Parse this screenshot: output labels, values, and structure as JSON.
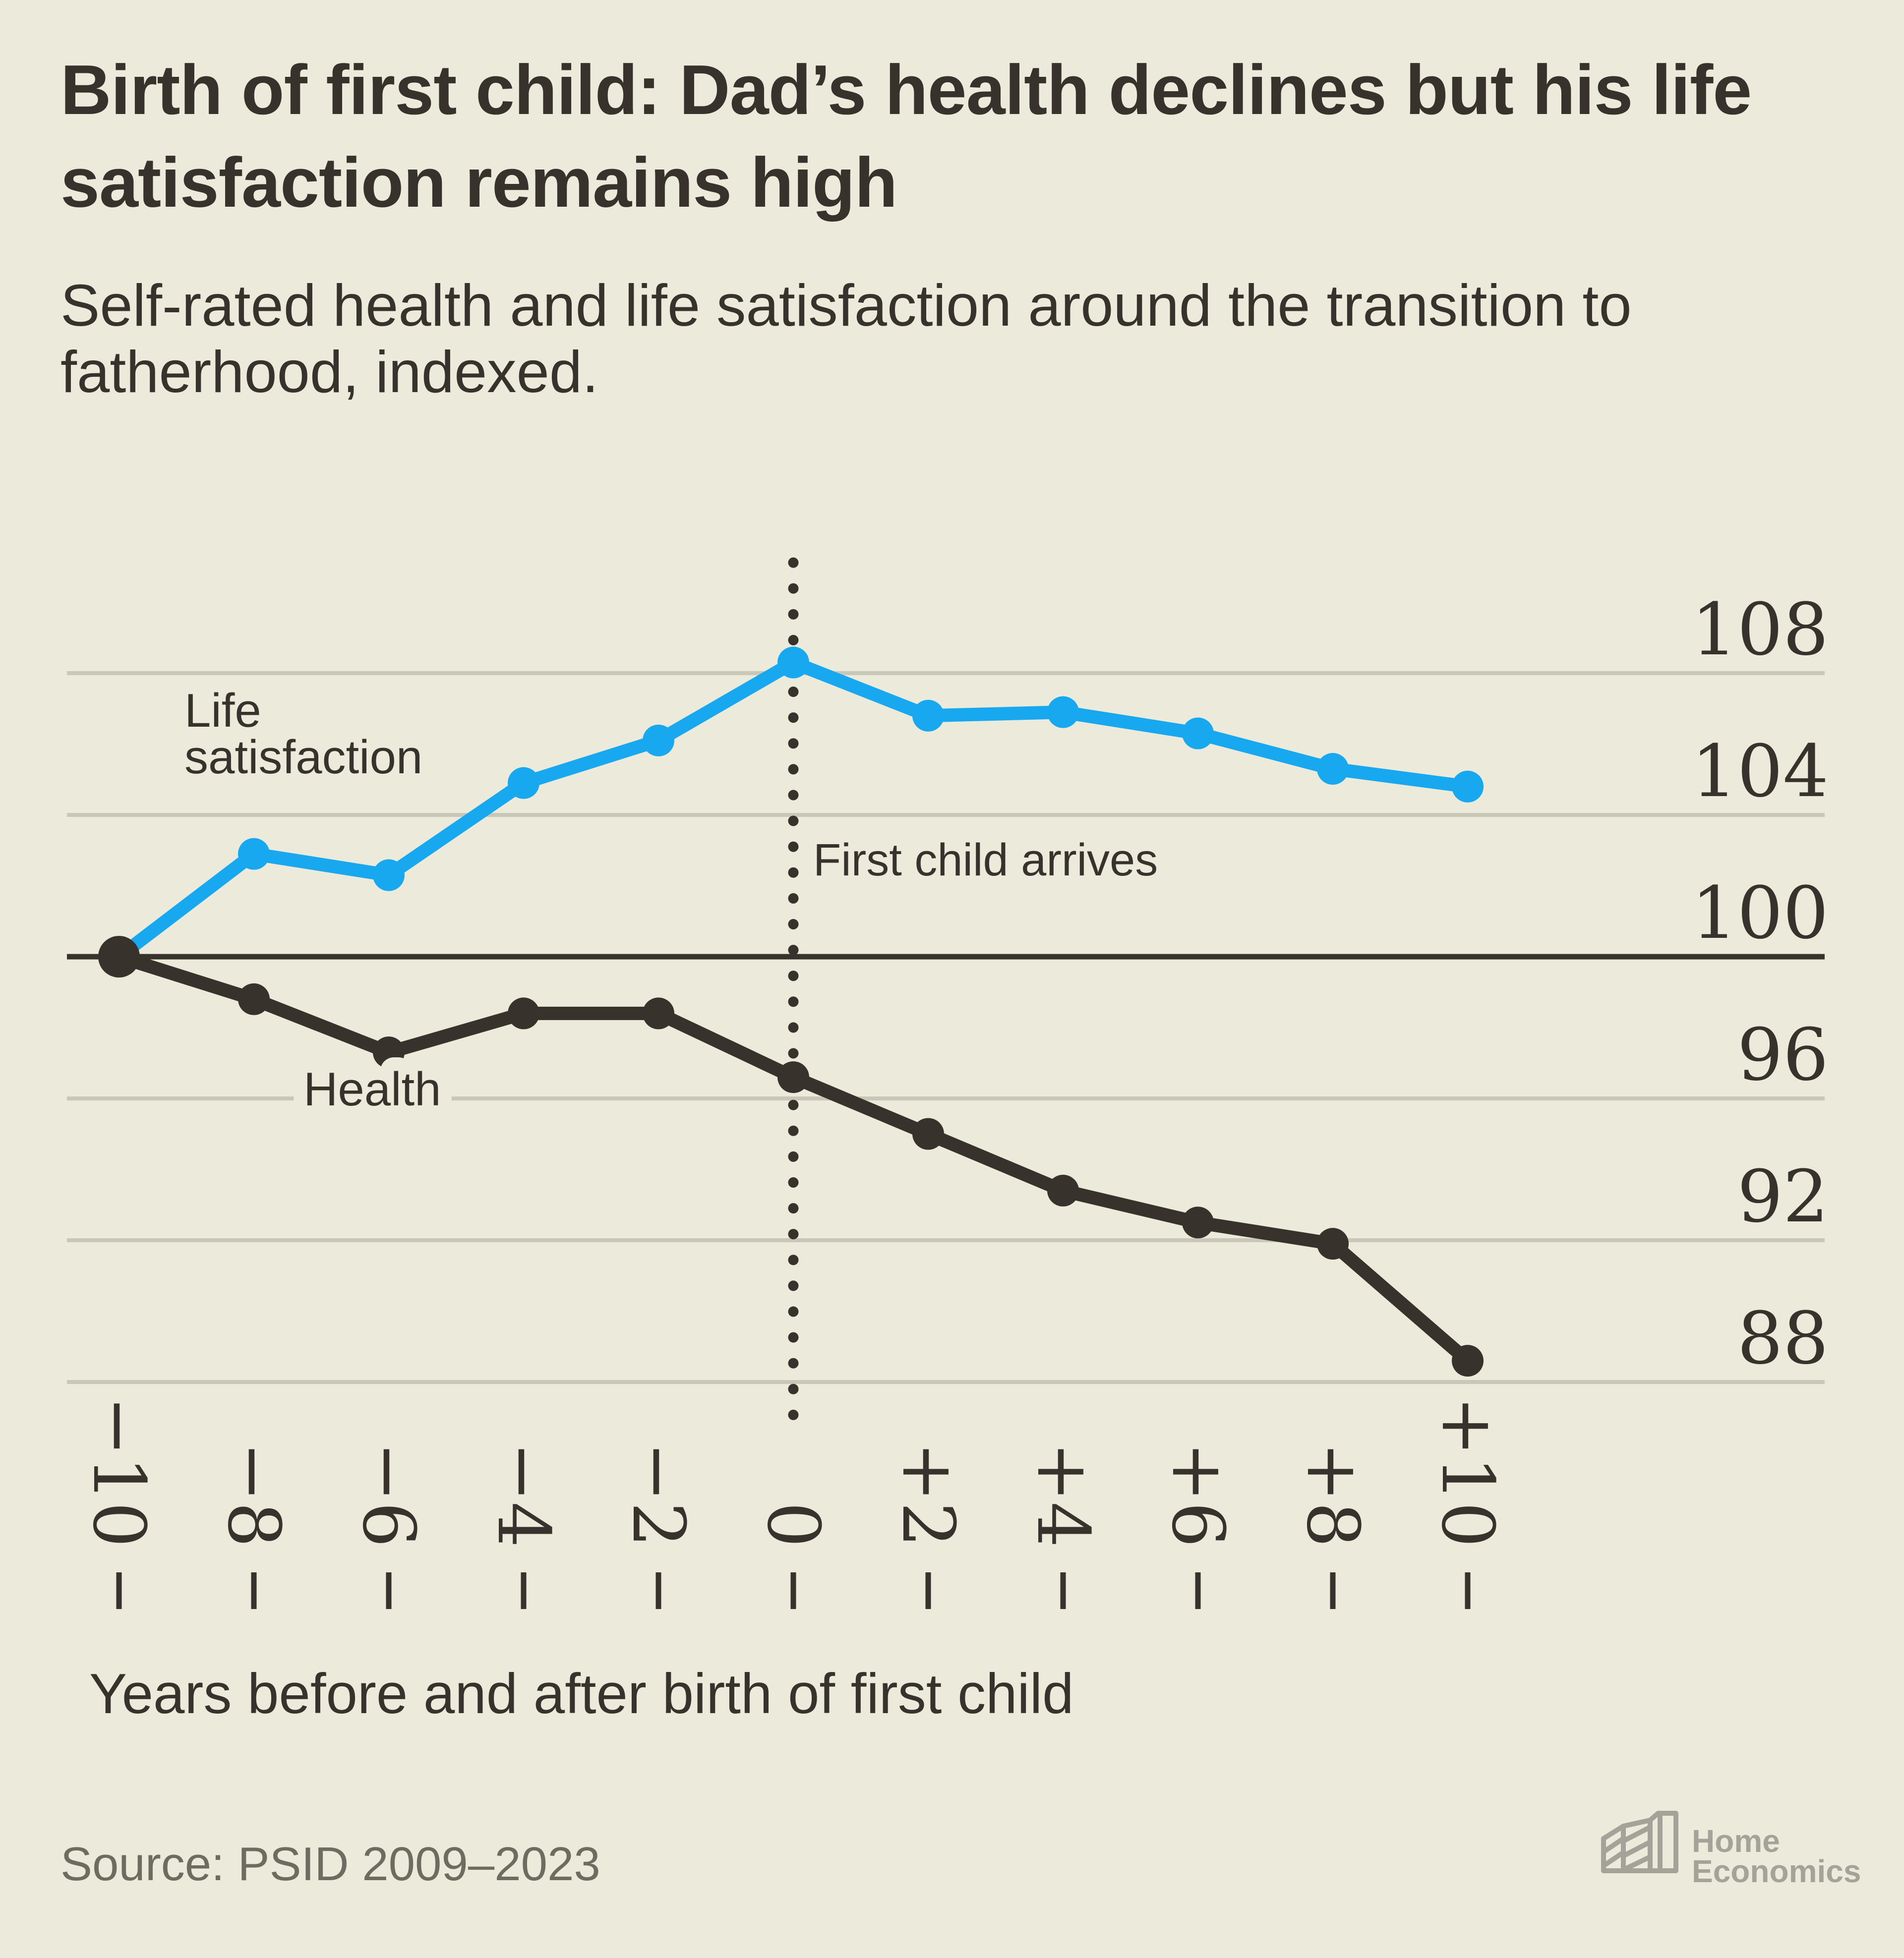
{
  "page": {
    "background": "#EBEADB"
  },
  "header": {
    "title": "Birth of first child: Dad’s health declines but his life satisfaction remains high",
    "subtitle": "Self-rated health and life satisfaction around the transition to fatherhood, indexed."
  },
  "chart_data": {
    "type": "line",
    "title": "Birth of first child: Dad’s health declines but his life satisfaction remains high",
    "subtitle": "Self-rated health and life satisfaction around the transition to fatherhood, indexed.",
    "x": [
      -10,
      -8,
      -6,
      -4,
      -2,
      0,
      2,
      4,
      6,
      8,
      10
    ],
    "x_tick_labels": [
      "−10",
      "−8",
      "−6",
      "−4",
      "−2",
      "0",
      "+2",
      "+4",
      "+6",
      "+8",
      "+10"
    ],
    "series": [
      {
        "name": "Life satisfaction",
        "label_lines": [
          "Life",
          "satisfaction"
        ],
        "color": "#17A8F0",
        "values": [
          100,
          102.9,
          102.3,
          104.9,
          106.1,
          108.3,
          106.8,
          106.9,
          106.3,
          105.3,
          104.8
        ]
      },
      {
        "name": "Health",
        "label_lines": [
          "Health"
        ],
        "color": "#37322C",
        "values": [
          100,
          98.8,
          97.3,
          98.4,
          98.4,
          96.6,
          95.0,
          93.4,
          92.5,
          91.9,
          88.6
        ]
      }
    ],
    "y_ticks": [
      88,
      92,
      96,
      100,
      104,
      108
    ],
    "ylim": [
      86.5,
      109.5
    ],
    "baseline": 100,
    "grid": "horizontal",
    "legend": "inline-labels",
    "annotation": "First child arrives",
    "annotation_x": 0,
    "xlabel": "Years before and after birth of first child"
  },
  "colors": {
    "background": "#EBEADB",
    "dark": "#37322C",
    "gridline": "#C9C8B8",
    "blue": "#17A8F0",
    "source_gray": "#6E6C61",
    "logo_gray": "#A5A399"
  },
  "footer": {
    "source": "Source: PSID 2009–2023",
    "logo_line1": "Home",
    "logo_line2": "Economics"
  }
}
